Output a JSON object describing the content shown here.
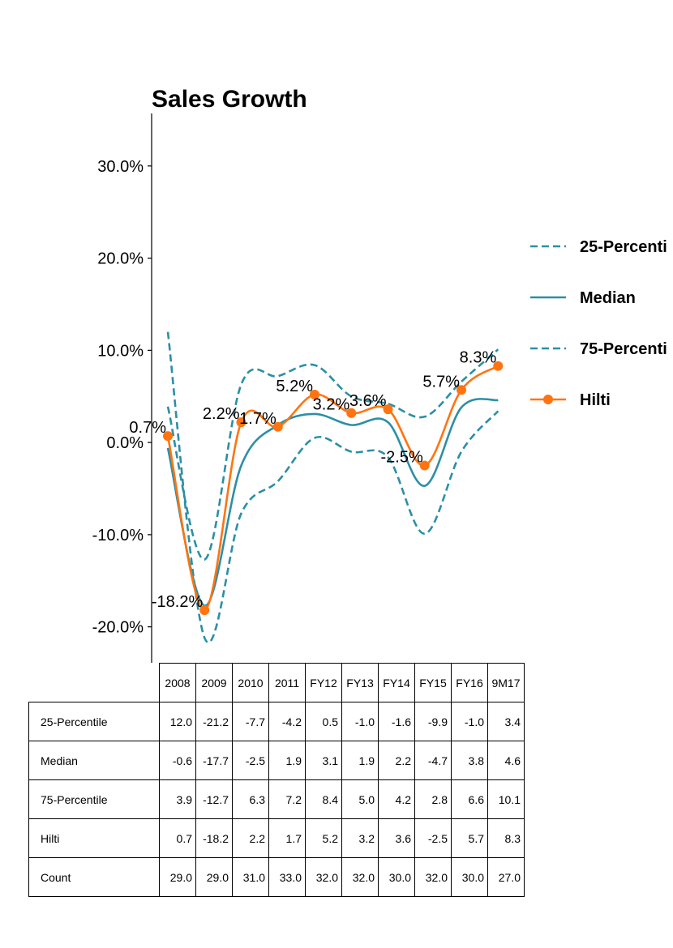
{
  "chart_data": {
    "type": "line",
    "title": "Sales Growth",
    "categories": [
      "2008",
      "2009",
      "2010",
      "2011",
      "FY12",
      "FY13",
      "FY14",
      "FY15",
      "FY16",
      "9M17"
    ],
    "y_ticks": [
      "30.0%",
      "20.0%",
      "10.0%",
      "0.0%",
      "-10.0%",
      "-20.0%"
    ],
    "y_tick_values": [
      30,
      20,
      10,
      0,
      -10,
      -20
    ],
    "ylim": [
      -23.9,
      35.7
    ],
    "legend_position": "right",
    "series": [
      {
        "name": "25-Percentile",
        "legend_label": "25-Percenti",
        "style": "dashed",
        "color": "#2b8fa6",
        "values": [
          12.0,
          -21.2,
          -7.7,
          -4.2,
          0.5,
          -1.0,
          -1.6,
          -9.9,
          -1.0,
          3.4
        ]
      },
      {
        "name": "Median",
        "legend_label": "Median",
        "style": "solid",
        "color": "#2b8fa6",
        "values": [
          -0.6,
          -17.7,
          -2.5,
          1.9,
          3.1,
          1.9,
          2.2,
          -4.7,
          3.8,
          4.6
        ]
      },
      {
        "name": "75-Percentile",
        "legend_label": "75-Percenti",
        "style": "dashed",
        "color": "#2b8fa6",
        "values": [
          3.9,
          -12.7,
          6.3,
          7.2,
          8.4,
          5.0,
          4.2,
          2.8,
          6.6,
          10.1
        ]
      },
      {
        "name": "Hilti",
        "legend_label": "Hilti",
        "style": "solid-markers",
        "color": "#ff7410",
        "values": [
          0.7,
          -18.2,
          2.2,
          1.7,
          5.2,
          3.2,
          3.6,
          -2.5,
          5.7,
          8.3
        ]
      }
    ],
    "data_labels": [
      "0.7%",
      "-18.2%",
      "2.2%",
      "1.7%",
      "5.2%",
      "3.2%",
      "3.6%",
      "-2.5%",
      "5.7%",
      "8.3%"
    ],
    "table": {
      "rows": [
        {
          "label": "25-Percentile",
          "cells": [
            "12.0",
            "-21.2",
            "-7.7",
            "-4.2",
            "0.5",
            "-1.0",
            "-1.6",
            "-9.9",
            "-1.0",
            "3.4"
          ]
        },
        {
          "label": "Median",
          "cells": [
            "-0.6",
            "-17.7",
            "-2.5",
            "1.9",
            "3.1",
            "1.9",
            "2.2",
            "-4.7",
            "3.8",
            "4.6"
          ]
        },
        {
          "label": "75-Percentile",
          "cells": [
            "3.9",
            "-12.7",
            "6.3",
            "7.2",
            "8.4",
            "5.0",
            "4.2",
            "2.8",
            "6.6",
            "10.1"
          ]
        },
        {
          "label": "Hilti",
          "cells": [
            "0.7",
            "-18.2",
            "2.2",
            "1.7",
            "5.2",
            "3.2",
            "3.6",
            "-2.5",
            "5.7",
            "8.3"
          ]
        },
        {
          "label": "Count",
          "cells": [
            "29.0",
            "29.0",
            "31.0",
            "33.0",
            "32.0",
            "32.0",
            "30.0",
            "32.0",
            "30.0",
            "27.0"
          ]
        }
      ]
    }
  }
}
